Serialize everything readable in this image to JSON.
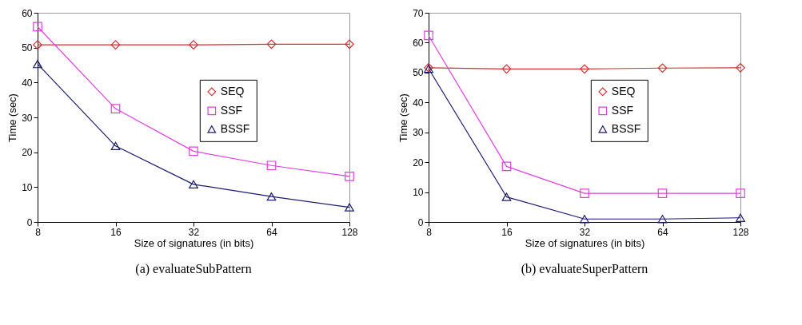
{
  "chart_data": [
    {
      "type": "line",
      "title": "(a) evaluateSubPattern",
      "xlabel": "Size of signatures (in bits)",
      "ylabel": "Time (sec)",
      "categories": [
        "8",
        "16",
        "32",
        "64",
        "128"
      ],
      "ylim": [
        0,
        60
      ],
      "yticks": [
        0,
        10,
        20,
        30,
        40,
        50,
        60
      ],
      "grid": false,
      "legend": "top right",
      "series": [
        {
          "name": "SEQ",
          "color": "#d03030",
          "marker": "diamond",
          "values": [
            50.8,
            50.8,
            50.8,
            51,
            51
          ]
        },
        {
          "name": "SSF",
          "color": "#e040e0",
          "marker": "square",
          "values": [
            56,
            32.5,
            20.3,
            16.2,
            13.1
          ]
        },
        {
          "name": "BSSF",
          "color": "#1a1a6e",
          "marker": "triangle",
          "values": [
            45.3,
            21.8,
            10.8,
            7.3,
            4.2
          ]
        }
      ]
    },
    {
      "type": "line",
      "title": "(b) evaluateSuperPattern",
      "xlabel": "Size of signatures (in bits)",
      "ylabel": "Time (sec)",
      "categories": [
        "8",
        "16",
        "32",
        "64",
        "128"
      ],
      "ylim": [
        0,
        70
      ],
      "yticks": [
        0,
        10,
        20,
        30,
        40,
        50,
        60,
        70
      ],
      "grid": false,
      "legend": "top right",
      "series": [
        {
          "name": "SEQ",
          "color": "#d03030",
          "marker": "diamond",
          "values": [
            51.6,
            51.2,
            51.2,
            51.5,
            51.6
          ]
        },
        {
          "name": "SSF",
          "color": "#e040e0",
          "marker": "square",
          "values": [
            62.4,
            18.6,
            9.6,
            9.6,
            9.6
          ]
        },
        {
          "name": "BSSF",
          "color": "#1a1a6e",
          "marker": "triangle",
          "values": [
            51.3,
            8.4,
            1,
            1,
            1.4
          ]
        }
      ]
    }
  ]
}
